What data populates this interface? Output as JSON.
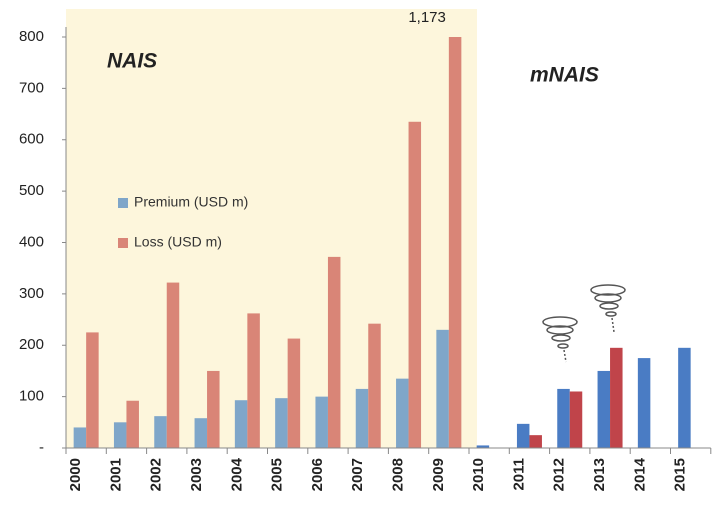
{
  "chart_data": {
    "type": "bar",
    "eras": [
      "NAIS",
      "mNAIS"
    ],
    "categories": [
      "2000",
      "2001",
      "2002",
      "2003",
      "2004",
      "2005",
      "2006",
      "2007",
      "2008",
      "2009",
      "2010",
      "2011",
      "2012",
      "2013",
      "2014",
      "2015"
    ],
    "series": [
      {
        "name": "Premium (USD m)",
        "color": "#7fa6c9",
        "colors": [
          "#7fa6c9",
          "#7fa6c9",
          "#7fa6c9",
          "#7fa6c9",
          "#7fa6c9",
          "#7fa6c9",
          "#7fa6c9",
          "#7fa6c9",
          "#7fa6c9",
          "#7fa6c9",
          "#4a7cc4",
          "#4a7cc4",
          "#4a7cc4",
          "#4a7cc4",
          "#4a7cc4",
          "#4a7cc4"
        ],
        "values": [
          40,
          50,
          62,
          58,
          93,
          97,
          100,
          115,
          135,
          230,
          5,
          47,
          115,
          150,
          175,
          195
        ]
      },
      {
        "name": "Loss (USD m)",
        "color": "#d98577",
        "colors": [
          "#d98577",
          "#d98577",
          "#d98577",
          "#d98577",
          "#d98577",
          "#d98577",
          "#d98577",
          "#d98577",
          "#d98577",
          "#d98577",
          "#c0444a",
          "#c0444a",
          "#c0444a",
          "#c0444a",
          "#c0444a",
          "#c0444a"
        ],
        "values": [
          225,
          92,
          322,
          150,
          262,
          213,
          372,
          242,
          635,
          1173,
          null,
          25,
          110,
          195,
          null,
          null
        ],
        "value_labels": [
          null,
          null,
          null,
          null,
          null,
          null,
          null,
          null,
          null,
          "1,173",
          null,
          null,
          null,
          null,
          null,
          null
        ]
      }
    ],
    "ylim": [
      0,
      800
    ],
    "yticks": [
      {
        "value": 0,
        "label": "-"
      },
      100,
      200,
      300,
      400,
      500,
      600,
      700,
      800
    ],
    "shade_color": "#fdf6dc",
    "grid": false
  }
}
